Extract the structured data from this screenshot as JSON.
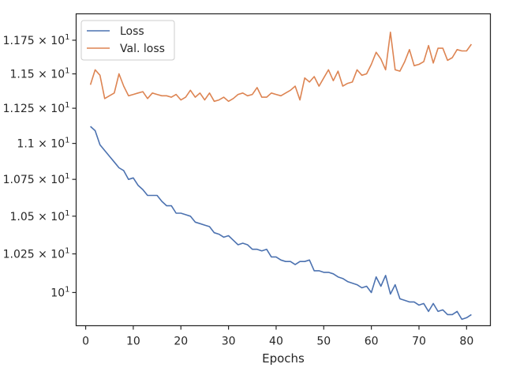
{
  "chart_data": {
    "type": "line",
    "xlabel": "Epochs",
    "ylabel": "",
    "title": "",
    "log_scale_y": true,
    "grid": false,
    "legend_position": "top-left",
    "xlim": [
      -2,
      85
    ],
    "ylim": [
      9.79,
      11.95
    ],
    "x_ticks": [
      0,
      10,
      20,
      30,
      40,
      50,
      60,
      70,
      80
    ],
    "y_ticks": [
      10,
      10.25,
      10.5,
      10.75,
      11,
      11.25,
      11.5,
      11.75
    ],
    "y_tick_labels": [
      {
        "mantissa": "",
        "base": "10",
        "exp": "1"
      },
      {
        "mantissa": "1.025 × ",
        "base": "10",
        "exp": "1"
      },
      {
        "mantissa": "1.05 × ",
        "base": "10",
        "exp": "1"
      },
      {
        "mantissa": "1.075 × ",
        "base": "10",
        "exp": "1"
      },
      {
        "mantissa": "1.1 × ",
        "base": "10",
        "exp": "1"
      },
      {
        "mantissa": "1.125 × ",
        "base": "10",
        "exp": "1"
      },
      {
        "mantissa": "1.15 × ",
        "base": "10",
        "exp": "1"
      },
      {
        "mantissa": "1.175 × ",
        "base": "10",
        "exp": "1"
      }
    ],
    "series": [
      {
        "name": "Loss",
        "color": "#4c72b0",
        "x": [
          1,
          2,
          3,
          4,
          5,
          6,
          7,
          8,
          9,
          10,
          11,
          12,
          13,
          14,
          15,
          16,
          17,
          18,
          19,
          20,
          21,
          22,
          23,
          24,
          25,
          26,
          27,
          28,
          29,
          30,
          31,
          32,
          33,
          34,
          35,
          36,
          37,
          38,
          39,
          40,
          41,
          42,
          43,
          44,
          45,
          46,
          47,
          48,
          49,
          50,
          51,
          52,
          53,
          54,
          55,
          56,
          57,
          58,
          59,
          60,
          61,
          62,
          63,
          64,
          65,
          66,
          67,
          68,
          69,
          70,
          71,
          72,
          73,
          74,
          75,
          76,
          77,
          78,
          79,
          80,
          81
        ],
        "values": [
          11.12,
          11.09,
          10.99,
          10.95,
          10.91,
          10.87,
          10.83,
          10.81,
          10.75,
          10.76,
          10.71,
          10.68,
          10.64,
          10.64,
          10.64,
          10.6,
          10.57,
          10.57,
          10.52,
          10.52,
          10.51,
          10.5,
          10.46,
          10.45,
          10.44,
          10.43,
          10.39,
          10.38,
          10.36,
          10.37,
          10.34,
          10.31,
          10.32,
          10.31,
          10.28,
          10.28,
          10.27,
          10.28,
          10.23,
          10.23,
          10.21,
          10.2,
          10.2,
          10.18,
          10.2,
          10.2,
          10.21,
          10.14,
          10.14,
          10.13,
          10.13,
          10.12,
          10.1,
          10.09,
          10.07,
          10.06,
          10.05,
          10.03,
          10.04,
          10.0,
          10.1,
          10.04,
          10.11,
          9.99,
          10.05,
          9.96,
          9.95,
          9.94,
          9.94,
          9.92,
          9.93,
          9.88,
          9.93,
          9.88,
          9.89,
          9.86,
          9.86,
          9.88,
          9.83,
          9.84,
          9.86
        ]
      },
      {
        "name": "Val. loss",
        "color": "#dd8452",
        "x": [
          1,
          2,
          3,
          4,
          5,
          6,
          7,
          8,
          9,
          10,
          11,
          12,
          13,
          14,
          15,
          16,
          17,
          18,
          19,
          20,
          21,
          22,
          23,
          24,
          25,
          26,
          27,
          28,
          29,
          30,
          31,
          32,
          33,
          34,
          35,
          36,
          37,
          38,
          39,
          40,
          41,
          42,
          43,
          44,
          45,
          46,
          47,
          48,
          49,
          50,
          51,
          52,
          53,
          54,
          55,
          56,
          57,
          58,
          59,
          60,
          61,
          62,
          63,
          64,
          65,
          66,
          67,
          68,
          69,
          70,
          71,
          72,
          73,
          74,
          75,
          76,
          77,
          78,
          79,
          80,
          81
        ],
        "values": [
          11.42,
          11.53,
          11.49,
          11.32,
          11.34,
          11.36,
          11.5,
          11.41,
          11.34,
          11.35,
          11.36,
          11.37,
          11.32,
          11.36,
          11.35,
          11.34,
          11.34,
          11.33,
          11.35,
          11.31,
          11.33,
          11.38,
          11.33,
          11.36,
          11.31,
          11.36,
          11.3,
          11.31,
          11.33,
          11.3,
          11.32,
          11.35,
          11.36,
          11.34,
          11.35,
          11.4,
          11.33,
          11.33,
          11.36,
          11.35,
          11.34,
          11.36,
          11.38,
          11.41,
          11.31,
          11.47,
          11.44,
          11.48,
          11.41,
          11.47,
          11.53,
          11.45,
          11.52,
          11.41,
          11.43,
          11.44,
          11.53,
          11.49,
          11.5,
          11.57,
          11.66,
          11.61,
          11.53,
          11.81,
          11.53,
          11.52,
          11.59,
          11.68,
          11.56,
          11.57,
          11.59,
          11.71,
          11.58,
          11.69,
          11.69,
          11.6,
          11.62,
          11.68,
          11.67,
          11.67,
          11.72
        ]
      }
    ]
  }
}
